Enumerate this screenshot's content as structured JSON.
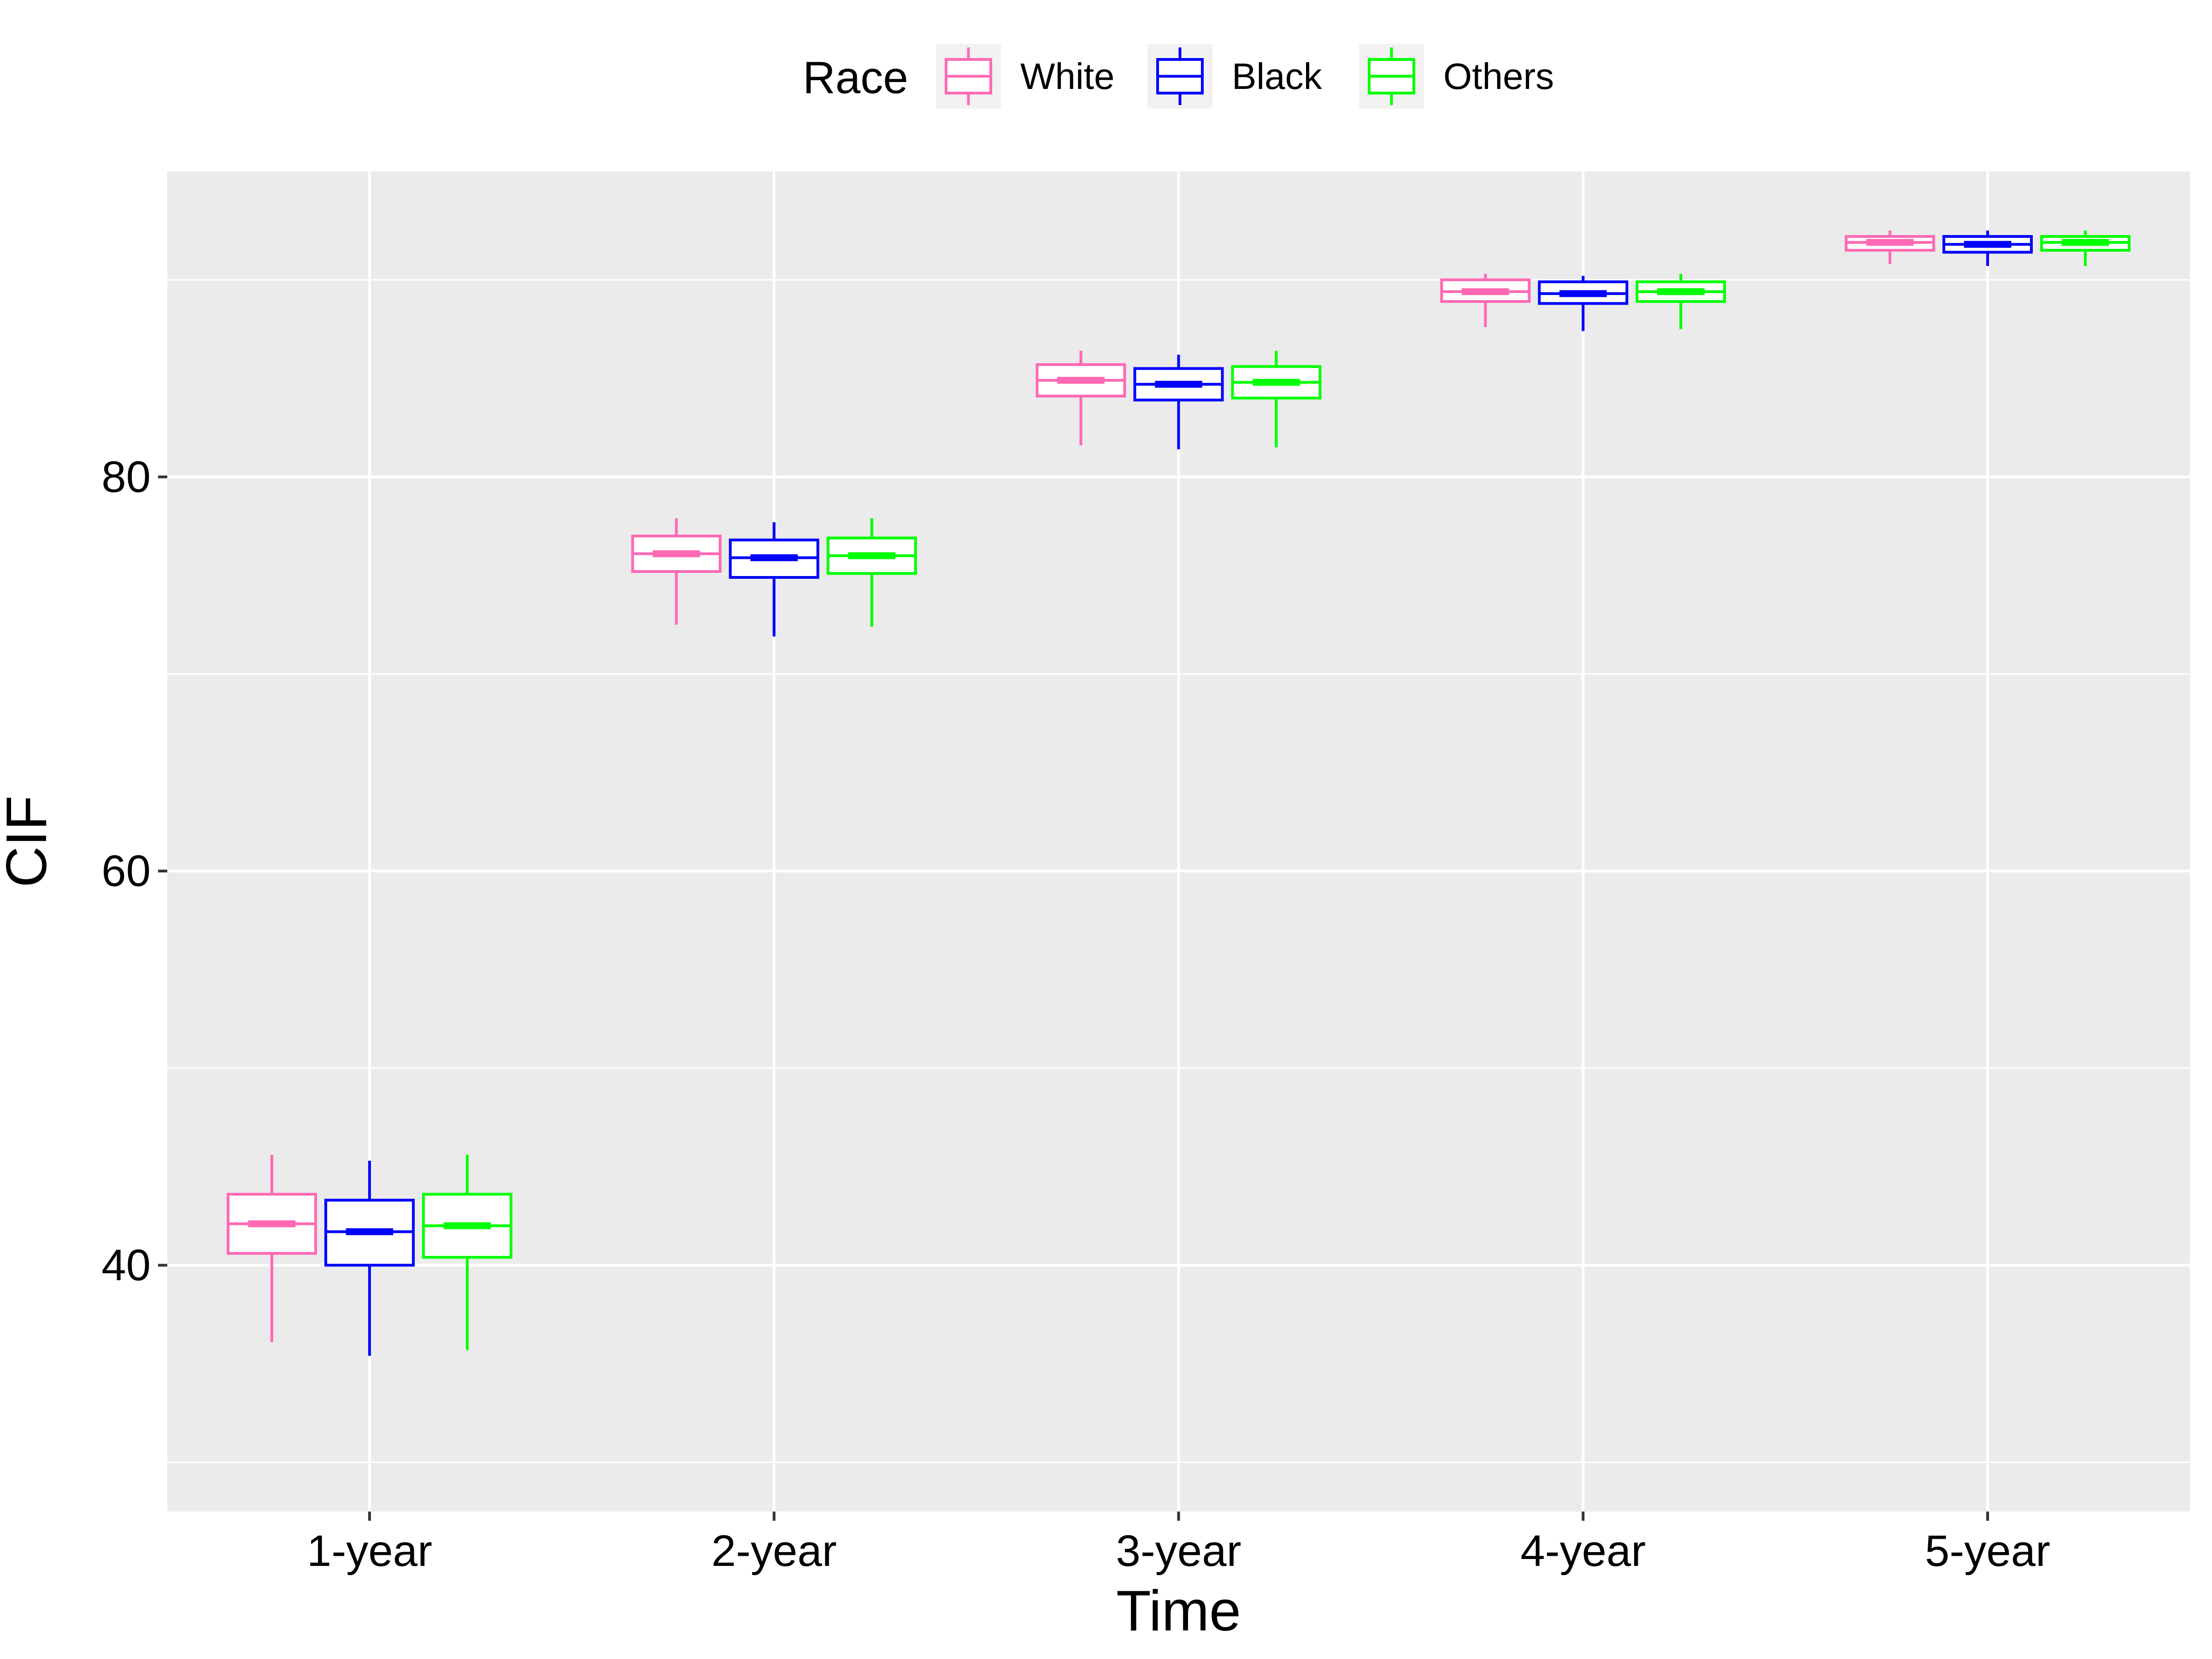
{
  "chart_data": {
    "type": "boxplot",
    "title": "",
    "xlabel": "Time",
    "ylabel": "CIF",
    "ylim": [
      27.5,
      95.5
    ],
    "yticks": [
      40,
      60,
      80
    ],
    "grid": true,
    "legend": {
      "title": "Race",
      "position": "top",
      "entries": [
        "White",
        "Black",
        "Others"
      ]
    },
    "categories": [
      "1-year",
      "2-year",
      "3-year",
      "4-year",
      "5-year"
    ],
    "series": [
      {
        "name": "White",
        "color": "#FF69B4",
        "boxes": [
          {
            "whisker_low": 36.1,
            "q1": 40.6,
            "median": 42.1,
            "q3": 43.6,
            "whisker_high": 45.6
          },
          {
            "whisker_low": 72.5,
            "q1": 75.2,
            "median": 76.1,
            "q3": 77.0,
            "whisker_high": 77.9
          },
          {
            "whisker_low": 81.6,
            "q1": 84.1,
            "median": 84.9,
            "q3": 85.7,
            "whisker_high": 86.4
          },
          {
            "whisker_low": 87.6,
            "q1": 88.9,
            "median": 89.4,
            "q3": 90.0,
            "whisker_high": 90.3
          },
          {
            "whisker_low": 90.8,
            "q1": 91.5,
            "median": 91.9,
            "q3": 92.2,
            "whisker_high": 92.5
          }
        ]
      },
      {
        "name": "Black",
        "color": "#0000FF",
        "boxes": [
          {
            "whisker_low": 35.4,
            "q1": 40.0,
            "median": 41.7,
            "q3": 43.3,
            "whisker_high": 45.3
          },
          {
            "whisker_low": 71.9,
            "q1": 74.9,
            "median": 75.9,
            "q3": 76.8,
            "whisker_high": 77.7
          },
          {
            "whisker_low": 81.4,
            "q1": 83.9,
            "median": 84.7,
            "q3": 85.5,
            "whisker_high": 86.2
          },
          {
            "whisker_low": 87.4,
            "q1": 88.8,
            "median": 89.3,
            "q3": 89.9,
            "whisker_high": 90.2
          },
          {
            "whisker_low": 90.7,
            "q1": 91.4,
            "median": 91.8,
            "q3": 92.2,
            "whisker_high": 92.5
          }
        ]
      },
      {
        "name": "Others",
        "color": "#00FF00",
        "boxes": [
          {
            "whisker_low": 35.7,
            "q1": 40.4,
            "median": 42.0,
            "q3": 43.6,
            "whisker_high": 45.6
          },
          {
            "whisker_low": 72.4,
            "q1": 75.1,
            "median": 76.0,
            "q3": 76.9,
            "whisker_high": 77.9
          },
          {
            "whisker_low": 81.5,
            "q1": 84.0,
            "median": 84.8,
            "q3": 85.6,
            "whisker_high": 86.4
          },
          {
            "whisker_low": 87.5,
            "q1": 88.9,
            "median": 89.4,
            "q3": 89.9,
            "whisker_high": 90.3
          },
          {
            "whisker_low": 90.7,
            "q1": 91.5,
            "median": 91.9,
            "q3": 92.2,
            "whisker_high": 92.5
          }
        ]
      }
    ]
  }
}
